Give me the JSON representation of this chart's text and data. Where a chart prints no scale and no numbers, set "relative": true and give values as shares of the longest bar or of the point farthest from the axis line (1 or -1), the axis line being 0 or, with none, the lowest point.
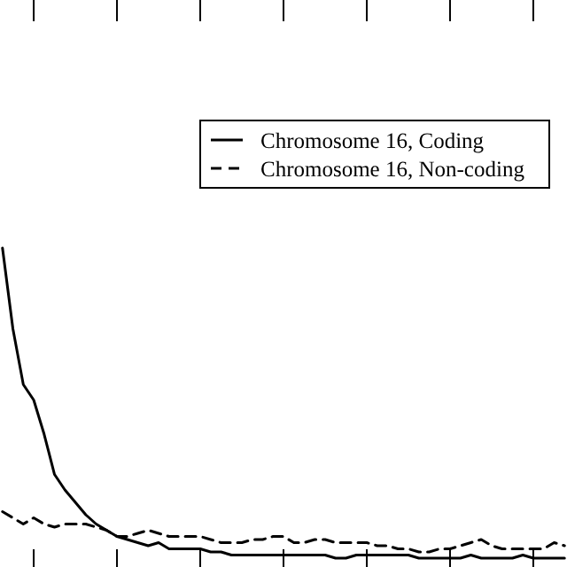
{
  "chart_data": {
    "type": "line",
    "relative": true,
    "categories": [
      null,
      null,
      null,
      null,
      null,
      null,
      null,
      null,
      null,
      null,
      null,
      null,
      null,
      null,
      null,
      null,
      null,
      null,
      null,
      null,
      null,
      null,
      null,
      null,
      null,
      null,
      null,
      null,
      null,
      null,
      null,
      null,
      null,
      null,
      null,
      null,
      null,
      null,
      null,
      null,
      null,
      null,
      null,
      null,
      null,
      null,
      null,
      null,
      null,
      null,
      null,
      null,
      null,
      null,
      null
    ],
    "legend": "top right",
    "series": [
      {
        "name": "Chromosome 16, Coding",
        "color": "#000000",
        "line_style": "solid",
        "values": [
          1,
          0.74,
          0.56,
          0.51,
          0.4,
          0.27,
          0.22,
          0.18,
          0.14,
          0.11,
          0.09,
          0.07,
          0.06,
          0.05,
          0.04,
          0.05,
          0.03,
          0.03,
          0.03,
          0.03,
          0.02,
          0.02,
          0.01,
          0.01,
          0.01,
          0.01,
          0.01,
          0.01,
          0.01,
          0.01,
          0.01,
          0.01,
          0,
          0,
          0.01,
          0.01,
          0.01,
          0.01,
          0.01,
          0.01,
          0,
          0,
          0,
          0,
          0,
          0.01,
          0,
          0,
          0,
          0,
          0.01,
          0,
          0,
          0,
          0
        ]
      },
      {
        "name": "Chromosome 16, Non-coding",
        "color": "#000000",
        "line_style": "dashed",
        "values": [
          0.15,
          0.13,
          0.11,
          0.13,
          0.11,
          0.1,
          0.11,
          0.11,
          0.11,
          0.1,
          0.09,
          0.07,
          0.07,
          0.08,
          0.09,
          0.08,
          0.07,
          0.07,
          0.07,
          0.07,
          0.06,
          0.05,
          0.05,
          0.05,
          0.06,
          0.06,
          0.07,
          0.07,
          0.05,
          0.05,
          0.06,
          0.06,
          0.05,
          0.05,
          0.05,
          0.05,
          0.04,
          0.04,
          0.03,
          0.03,
          0.02,
          0.02,
          0.03,
          0.03,
          0.04,
          0.05,
          0.06,
          0.04,
          0.03,
          0.03,
          0.03,
          0.03,
          0.03,
          0.05,
          0.04
        ]
      }
    ]
  }
}
